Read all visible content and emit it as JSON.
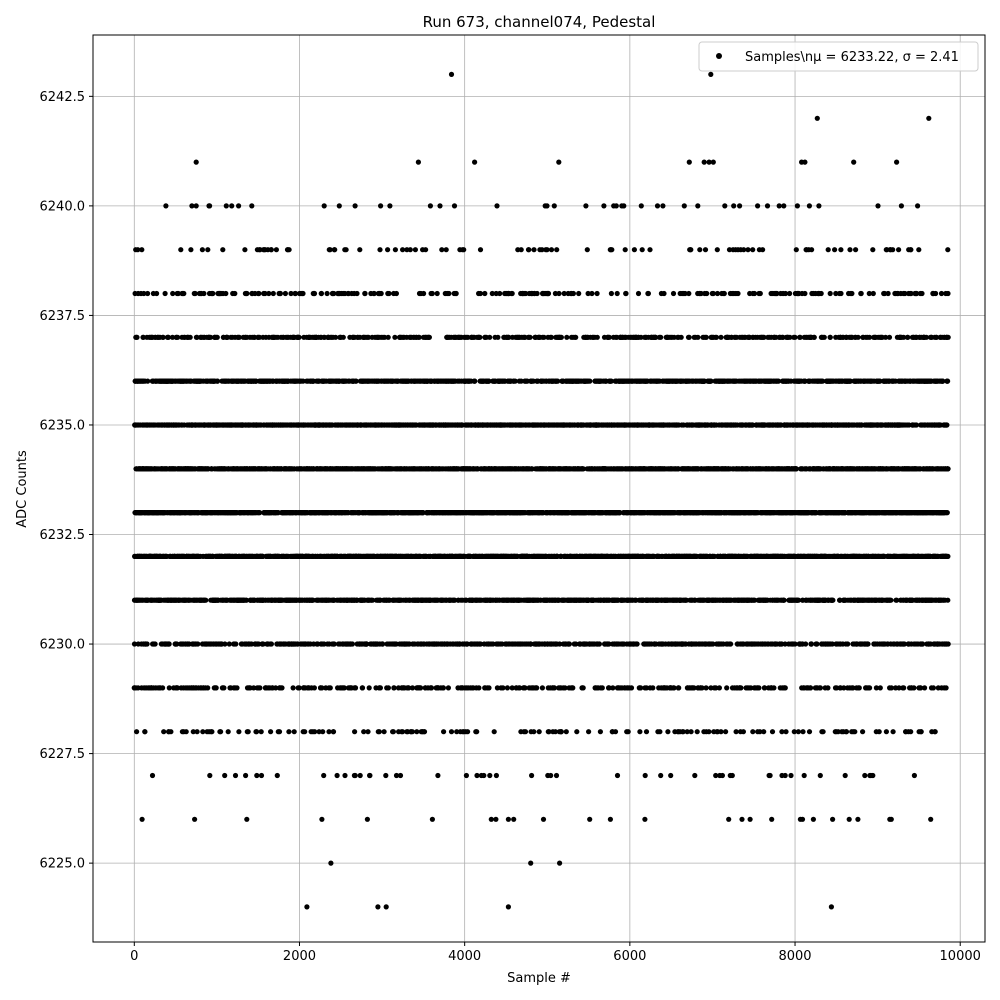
{
  "chart_data": {
    "type": "scatter",
    "title": "Run 673, channel074, Pedestal",
    "xlabel": "Sample #",
    "ylabel": "ADC Counts",
    "xlim": [
      -500,
      10300
    ],
    "ylim": [
      6223.2,
      6243.9
    ],
    "xticks": [
      0,
      2000,
      4000,
      6000,
      8000,
      10000
    ],
    "xtick_labels": [
      "0",
      "2000",
      "4000",
      "6000",
      "8000",
      "10000"
    ],
    "yticks": [
      6225.0,
      6227.5,
      6230.0,
      6232.5,
      6235.0,
      6237.5,
      6240.0,
      6242.5
    ],
    "ytick_labels": [
      "6225.0",
      "6227.5",
      "6230.0",
      "6232.5",
      "6235.0",
      "6237.5",
      "6240.0",
      "6242.5"
    ],
    "grid": true,
    "legend_position": "upper right",
    "legend_label": "Samples\\nμ = 6233.22, σ = 2.41",
    "n_samples": 9856,
    "mean": 6233.22,
    "sigma": 2.41,
    "marker_color": "#000000",
    "outliers": [
      {
        "x": 3840,
        "y": 6243
      },
      {
        "x": 6980,
        "y": 6243
      },
      {
        "x": 8270,
        "y": 6242
      },
      {
        "x": 9620,
        "y": 6242
      },
      {
        "x": 750,
        "y": 6241
      },
      {
        "x": 3440,
        "y": 6241
      },
      {
        "x": 4120,
        "y": 6241
      },
      {
        "x": 5140,
        "y": 6241
      },
      {
        "x": 6720,
        "y": 6241
      },
      {
        "x": 6900,
        "y": 6241
      },
      {
        "x": 6960,
        "y": 6241
      },
      {
        "x": 7010,
        "y": 6241
      },
      {
        "x": 8080,
        "y": 6241
      },
      {
        "x": 8120,
        "y": 6241
      },
      {
        "x": 8710,
        "y": 6241
      },
      {
        "x": 9230,
        "y": 6241
      },
      {
        "x": 2380,
        "y": 6225
      },
      {
        "x": 4800,
        "y": 6225
      },
      {
        "x": 5150,
        "y": 6225
      },
      {
        "x": 2090,
        "y": 6224
      },
      {
        "x": 2950,
        "y": 6224
      },
      {
        "x": 3050,
        "y": 6224
      },
      {
        "x": 4530,
        "y": 6224
      },
      {
        "x": 8440,
        "y": 6224
      }
    ]
  }
}
